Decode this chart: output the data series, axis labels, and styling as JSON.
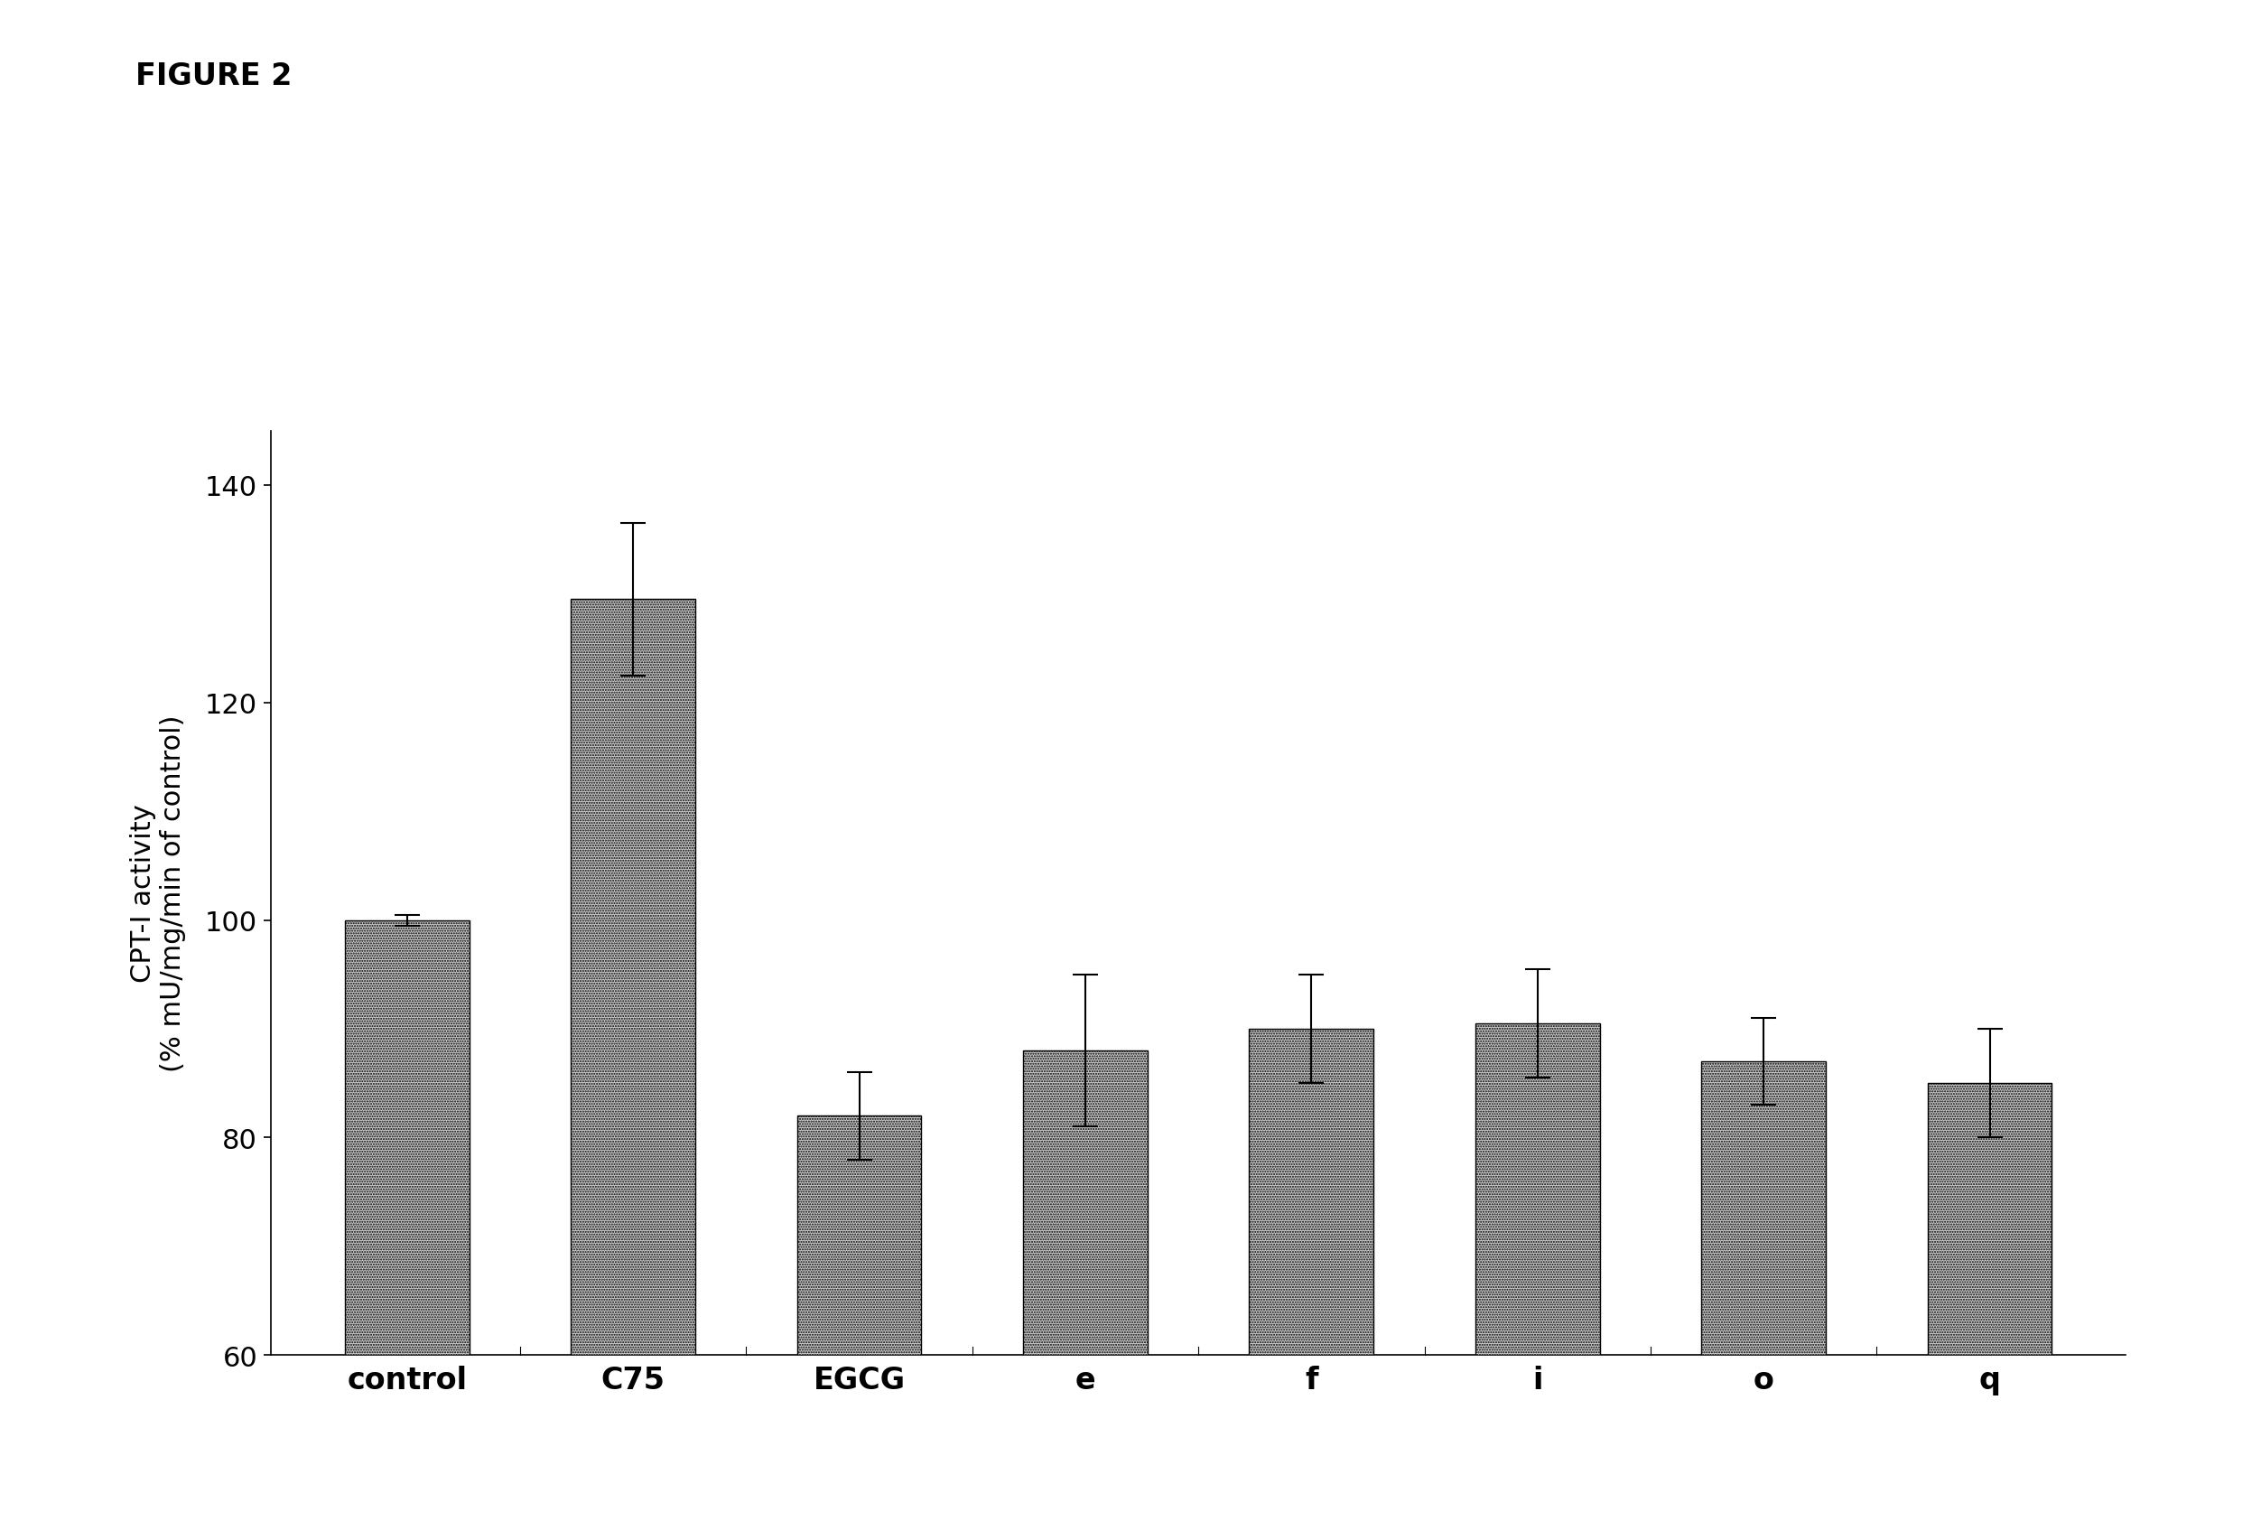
{
  "categories": [
    "control",
    "C75",
    "EGCG",
    "e",
    "f",
    "i",
    "o",
    "q"
  ],
  "values": [
    100,
    129.5,
    82,
    88,
    90,
    90.5,
    87,
    85
  ],
  "errors": [
    0.5,
    7,
    4,
    7,
    5,
    5,
    4,
    5
  ],
  "ylim": [
    60,
    145
  ],
  "yticks": [
    60,
    80,
    100,
    120,
    140
  ],
  "ylabel_line1": "CPT-I activity",
  "ylabel_line2": "(% mU/mg/min of control)",
  "figure_label": "FIGURE 2",
  "bar_color": "#c8c8c8",
  "bar_edgecolor": "#000000",
  "background_color": "#ffffff",
  "bar_hatch": "......",
  "bar_width": 0.55,
  "label_fontsize": 22,
  "tick_fontsize": 22,
  "xtick_fontsize": 24,
  "figure_label_fontsize": 24
}
